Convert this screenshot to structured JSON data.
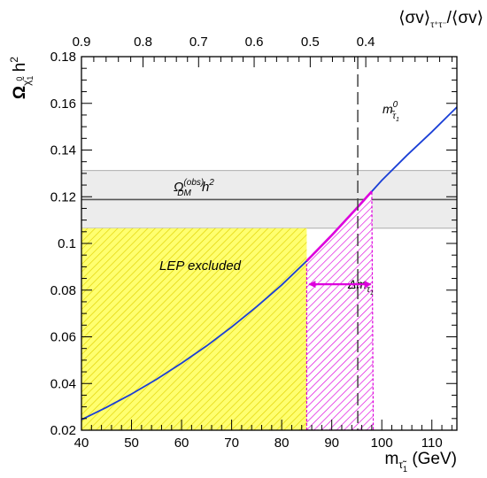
{
  "chart_data": {
    "type": "line",
    "xlabel": {
      "main": "m",
      "sub": "τ̃",
      "subsub": "1",
      "unit": " (GeV)"
    },
    "ylabel": {
      "main": "Ω",
      "sub": "χ̃",
      "subsup": "0",
      "subsub": "1",
      "tail": " h",
      "tailsup": "2"
    },
    "top_axis_label": "⟨σv⟩τ⁺τ⁻/⟨σv⟩",
    "top_axis_label_parts": {
      "left": "⟨σv⟩",
      "sub": "τ⁺τ⁻",
      "right": "/⟨σv⟩"
    },
    "xlim": [
      40,
      115
    ],
    "ylim": [
      0.02,
      0.18
    ],
    "x_ticks": [
      40,
      50,
      60,
      70,
      80,
      90,
      100,
      110
    ],
    "y_ticks": [
      0.02,
      0.04,
      0.06,
      0.08,
      0.1,
      0.12,
      0.14,
      0.16,
      0.18
    ],
    "x_tick_labels": [
      "40",
      "50",
      "60",
      "70",
      "80",
      "90",
      "100",
      "110"
    ],
    "y_tick_labels": [
      "0.02",
      "0.04",
      "0.06",
      "0.08",
      "0.1",
      "0.12",
      "0.14",
      "0.16",
      "0.18"
    ],
    "top_ticks": [
      {
        "x": 40,
        "label": "0.9"
      },
      {
        "x": 52.3,
        "label": "0.8"
      },
      {
        "x": 63.4,
        "label": "0.7"
      },
      {
        "x": 74.5,
        "label": "0.6"
      },
      {
        "x": 85.7,
        "label": "0.5"
      },
      {
        "x": 96.8,
        "label": "0.4"
      }
    ],
    "series": [
      {
        "color": "#1a3fd6",
        "x": [
          40,
          45,
          50,
          55,
          60,
          65,
          70,
          75,
          80,
          85,
          90,
          95,
          98.3,
          100,
          105,
          110,
          115
        ],
        "y": [
          0.0245,
          0.0298,
          0.0355,
          0.0418,
          0.0487,
          0.0561,
          0.0642,
          0.0729,
          0.0822,
          0.0925,
          0.1035,
          0.1151,
          0.123,
          0.127,
          0.1377,
          0.1478,
          0.1584
        ]
      }
    ],
    "bands": {
      "obs_central": 0.1188,
      "obs_low": 0.1065,
      "obs_high": 0.1312,
      "obs_color": "#ececec",
      "lep_excluded_xmax": 85,
      "lep_excluded_ymax": 0.1065,
      "lep_color": "#ffff66",
      "delta_m_range": [
        85,
        98.3
      ],
      "delta_m_color": "#dd00dd",
      "m0_line_x": 95.2
    },
    "annotations": {
      "obs_label": {
        "main": "Ω",
        "sup": "(obs)",
        "sub": "DM",
        "tail": " h",
        "tailsup": "2"
      },
      "lep_label": "LEP excluded",
      "delta_label": {
        "main": "Δm",
        "sub": "τ̃",
        "subsub": "1"
      },
      "m0_label": {
        "main": "m",
        "sup": "0",
        "sub": "τ̃",
        "subsub": "1"
      }
    },
    "grid": false
  }
}
